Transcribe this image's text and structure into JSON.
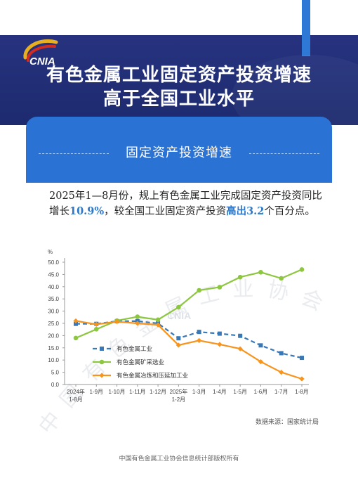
{
  "header": {
    "logo_text": "CNIA",
    "title_line1": "有色金属工业固定资产投资增速",
    "title_line2": "高于全国工业水平",
    "colors": {
      "navy": "#233079",
      "accent_blue": "#2f79d6",
      "logo_red": "#d42b1e",
      "logo_gold": "#e8b020"
    }
  },
  "card": {
    "title": "固定资产投资增速",
    "color": "#2a72d3"
  },
  "paragraph": {
    "part1": "2025年1—8月份，规上有色金属工业完成固定资产投资同比增长",
    "highlight1": "10.9%",
    "part2": "，较全国工业固定资产投资",
    "highlight2": "高出3.2",
    "part3": "个百分点。"
  },
  "chart_data": {
    "type": "line",
    "ylabel": "%",
    "ylim": [
      0,
      50
    ],
    "yticks": [
      "0.0",
      "5.0",
      "10.0",
      "15.0",
      "20.0",
      "25.0",
      "30.0",
      "35.0",
      "40.0",
      "45.0",
      "50.0"
    ],
    "categories": [
      {
        "line1": "2024年",
        "line2": "1-8月"
      },
      {
        "line1": "1-9月",
        "line2": ""
      },
      {
        "line1": "1-10月",
        "line2": ""
      },
      {
        "line1": "1-11月",
        "line2": ""
      },
      {
        "line1": "1-12月",
        "line2": ""
      },
      {
        "line1": "2025年",
        "line2": "1-2月"
      },
      {
        "line1": "1-3月",
        "line2": ""
      },
      {
        "line1": "1-4月",
        "line2": ""
      },
      {
        "line1": "1-5月",
        "line2": ""
      },
      {
        "line1": "1-6月",
        "line2": ""
      },
      {
        "line1": "1-7月",
        "line2": ""
      },
      {
        "line1": "1-8月",
        "line2": ""
      }
    ],
    "series": [
      {
        "name": "有色金属工业",
        "color": "#3a78b5",
        "style": "dashed-square",
        "values": [
          24.8,
          24.8,
          25.9,
          25.9,
          25.0,
          18.9,
          21.5,
          20.8,
          19.9,
          16.0,
          12.8,
          10.9
        ]
      },
      {
        "name": "有色金属矿采选业",
        "color": "#8dc63f",
        "style": "solid-circle",
        "values": [
          19.0,
          22.6,
          26.1,
          27.7,
          26.5,
          31.6,
          38.5,
          39.8,
          43.9,
          45.9,
          43.4,
          47.0
        ]
      },
      {
        "name": "有色金属冶炼和压延加工业",
        "color": "#f7941d",
        "style": "solid-diamond",
        "values": [
          26.0,
          24.6,
          25.7,
          25.0,
          24.4,
          16.1,
          18.0,
          16.4,
          14.6,
          9.3,
          5.0,
          2.3
        ]
      }
    ],
    "grid": false,
    "legend_position": "lower-left"
  },
  "watermark": {
    "arc_text": "中国有色金属工业协会",
    "logo_text": "CNIA"
  },
  "source": "数据来源：国家统计局",
  "footer": "中国有色金属工业协会信息统计部版权所有"
}
